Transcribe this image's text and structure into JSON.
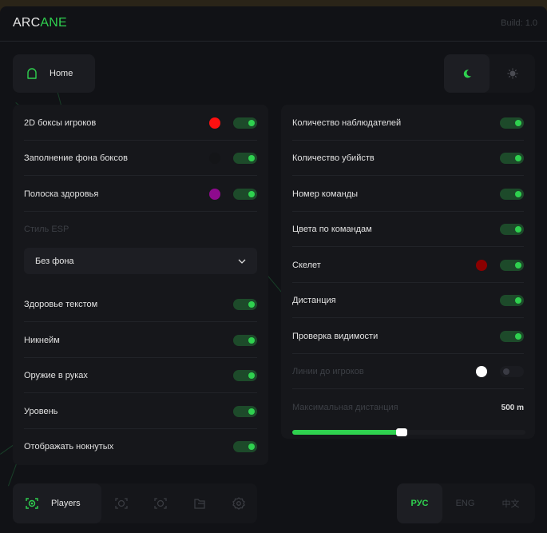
{
  "header": {
    "logo_a": "ARC",
    "logo_b": "ANE",
    "build": "Build: 1.0"
  },
  "home": {
    "label": "Home"
  },
  "theme": {
    "active": "dark"
  },
  "left_panel": {
    "rows": [
      {
        "label": "2D боксы игроков",
        "color": "#ff1010",
        "enabled": true
      },
      {
        "label": "Заполнение фона боксов",
        "color": "#141518",
        "enabled": true
      },
      {
        "label": "Полоска здоровья",
        "color": "#8e0a8e",
        "enabled": true
      }
    ],
    "esp_style_label": "Стиль ESP",
    "esp_style_value": "Без фона",
    "rows2": [
      {
        "label": "Здоровье текстом",
        "enabled": true
      },
      {
        "label": "Никнейм",
        "enabled": true
      },
      {
        "label": "Оружие в руках",
        "enabled": true
      },
      {
        "label": "Уровень",
        "enabled": true
      },
      {
        "label": "Отображать нокнутых",
        "enabled": true
      }
    ]
  },
  "right_panel": {
    "rows": [
      {
        "label": "Количество наблюдателей",
        "enabled": true
      },
      {
        "label": "Количество убийств",
        "enabled": true
      },
      {
        "label": "Номер команды",
        "enabled": true
      },
      {
        "label": "Цвета по командам",
        "enabled": true
      },
      {
        "label": "Скелет",
        "color": "#8b0000",
        "enabled": true
      },
      {
        "label": "Дистанция",
        "enabled": true
      },
      {
        "label": "Проверка видимости",
        "enabled": true
      },
      {
        "label": "Линии до игроков",
        "color": "#ffffff",
        "enabled": false
      }
    ],
    "max_distance_label": "Максимальная дистанция",
    "max_distance_value": "500 m",
    "max_distance_fraction": 0.47
  },
  "nav": {
    "active_label": "Players",
    "icons": [
      "players-icon",
      "radar-icon",
      "visibility-icon",
      "folder-icon",
      "settings-icon"
    ]
  },
  "languages": [
    "РУС",
    "ENG",
    "中文"
  ],
  "colors": {
    "accent": "#2fd14f",
    "background": "#111216",
    "panel": "#16171b"
  }
}
